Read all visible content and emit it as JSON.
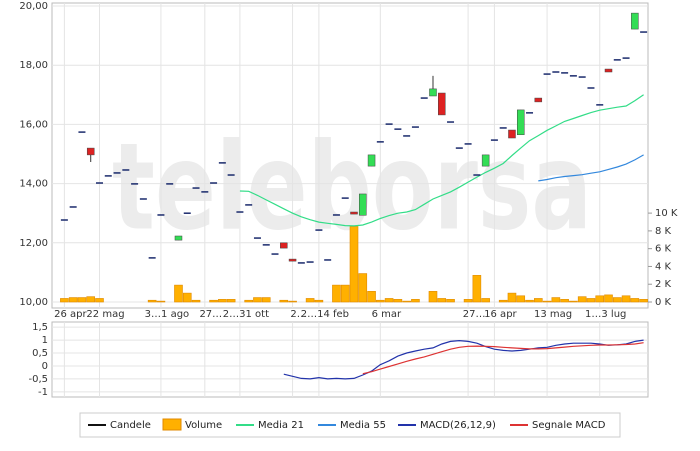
{
  "watermark": "teleborsa",
  "chart_data": [
    {
      "type": "candlestick",
      "name": "Candele",
      "color": "#1a2a6c",
      "up_color": "#33dd55",
      "down_color": "#dd2222",
      "categories": [
        "26 apr",
        null,
        null,
        null,
        "22 mag",
        null,
        null,
        null,
        null,
        null,
        null,
        "3…1 ago",
        null,
        null,
        null,
        null,
        "27…",
        null,
        null,
        null,
        "2…31 ott",
        null,
        null,
        null,
        null,
        null,
        "2…",
        null,
        null,
        "2…14 feb",
        null,
        null,
        null,
        null,
        null,
        null,
        "6 mar",
        null,
        null,
        null,
        null,
        null,
        null,
        null,
        null,
        null,
        "27…",
        null,
        null,
        "16 apr",
        null,
        null,
        null,
        null,
        null,
        "13 mag",
        null,
        null,
        null,
        null,
        null,
        "1…3 lug",
        null,
        null,
        null,
        null,
        null
      ],
      "open": [
        12.77,
        13.21,
        15.74,
        15.2,
        14.02,
        14.26,
        14.36,
        14.46,
        13.99,
        13.48,
        11.49,
        12.94,
        13.99,
        12.09,
        13.0,
        13.85,
        13.72,
        14.02,
        14.7,
        14.29,
        13.04,
        13.28,
        12.16,
        11.93,
        11.62,
        12.0,
        11.45,
        11.32,
        11.35,
        12.43,
        11.42,
        12.94,
        13.51,
        13.04,
        12.93,
        14.59,
        15.41,
        16.01,
        15.84,
        15.61,
        15.91,
        16.89,
        16.96,
        17.06,
        16.08,
        15.2,
        15.34,
        14.29,
        14.59,
        15.47,
        15.88,
        15.81,
        15.65,
        16.39,
        16.89,
        17.7,
        17.77,
        17.74,
        17.64,
        17.6,
        17.23,
        16.66,
        17.87,
        18.18,
        18.24,
        19.22,
        19.12
      ],
      "high": [
        12.77,
        13.21,
        15.74,
        15.2,
        14.02,
        14.26,
        14.36,
        14.46,
        13.99,
        13.48,
        11.49,
        12.94,
        13.99,
        12.23,
        13.0,
        13.85,
        13.72,
        14.02,
        14.7,
        14.29,
        13.04,
        13.28,
        12.16,
        11.93,
        11.62,
        12.0,
        11.45,
        11.32,
        11.35,
        12.43,
        11.42,
        12.94,
        13.51,
        13.04,
        13.65,
        14.97,
        15.41,
        16.01,
        15.84,
        15.61,
        15.91,
        16.89,
        17.64,
        17.06,
        16.08,
        15.2,
        15.34,
        14.29,
        14.97,
        15.47,
        15.88,
        15.81,
        16.49,
        16.39,
        16.89,
        17.7,
        17.77,
        17.74,
        17.64,
        17.6,
        17.23,
        16.66,
        17.87,
        18.18,
        18.24,
        19.76,
        19.12
      ],
      "low": [
        12.77,
        13.21,
        15.74,
        14.73,
        14.02,
        14.26,
        14.36,
        14.46,
        13.99,
        13.48,
        11.49,
        12.94,
        13.99,
        12.09,
        13.0,
        13.85,
        13.72,
        14.02,
        14.7,
        14.29,
        13.04,
        13.28,
        12.16,
        11.93,
        11.62,
        11.82,
        11.38,
        11.32,
        11.35,
        12.43,
        11.42,
        12.94,
        13.51,
        12.97,
        12.93,
        14.59,
        15.41,
        16.01,
        15.84,
        15.61,
        15.91,
        16.89,
        16.96,
        16.32,
        16.08,
        15.2,
        15.34,
        14.29,
        14.59,
        15.47,
        15.88,
        15.54,
        15.65,
        16.39,
        16.76,
        17.7,
        17.77,
        17.74,
        17.64,
        17.6,
        17.23,
        16.66,
        17.77,
        18.18,
        18.24,
        19.22,
        19.12
      ],
      "close": [
        12.77,
        13.21,
        15.74,
        14.97,
        14.02,
        14.26,
        14.36,
        14.46,
        13.99,
        13.48,
        11.49,
        12.94,
        13.99,
        12.23,
        13.0,
        13.85,
        13.72,
        14.02,
        14.7,
        14.29,
        13.04,
        13.28,
        12.16,
        11.93,
        11.62,
        11.82,
        11.38,
        11.32,
        11.35,
        12.43,
        11.42,
        12.94,
        13.51,
        12.97,
        13.65,
        14.97,
        15.41,
        16.01,
        15.84,
        15.61,
        15.91,
        16.89,
        17.2,
        16.32,
        16.08,
        15.2,
        15.34,
        14.29,
        14.97,
        15.47,
        15.88,
        15.54,
        16.49,
        16.39,
        16.76,
        17.7,
        17.77,
        17.74,
        17.64,
        17.6,
        17.23,
        16.66,
        17.77,
        18.18,
        18.24,
        19.76,
        19.12
      ],
      "series": [
        {
          "name": "Volume",
          "type": "bar",
          "axis": "y2",
          "color": "#ffb000",
          "values": [
            0.4,
            0.5,
            0.5,
            0.6,
            0.4,
            0,
            0,
            0,
            0,
            0,
            0.2,
            0.1,
            0,
            1.9,
            1.0,
            0.2,
            0,
            0.2,
            0.3,
            0.3,
            0,
            0.2,
            0.5,
            0.5,
            0,
            0.2,
            0.1,
            0,
            0.4,
            0.2,
            0,
            1.9,
            1.9,
            8.5,
            3.2,
            1.2,
            0.2,
            0.4,
            0.3,
            0.1,
            0.3,
            0,
            1.2,
            0.4,
            0.3,
            0,
            0.3,
            3.0,
            0.4,
            0,
            0.2,
            1.0,
            0.7,
            0.2,
            0.4,
            0.1,
            0.5,
            0.3,
            0.1,
            0.6,
            0.4,
            0.7,
            0.8,
            0.5,
            0.7,
            0.4,
            0.3
          ]
        },
        {
          "name": "Media 21",
          "type": "line",
          "color": "#33dd88",
          "values": [
            null,
            null,
            null,
            null,
            null,
            null,
            null,
            null,
            null,
            null,
            null,
            null,
            null,
            null,
            null,
            null,
            null,
            null,
            null,
            null,
            13.75,
            13.74,
            13.6,
            13.45,
            13.3,
            13.15,
            13.0,
            12.88,
            12.78,
            12.7,
            12.66,
            12.62,
            12.58,
            12.57,
            12.6,
            12.7,
            12.82,
            12.92,
            13.0,
            13.04,
            13.12,
            13.3,
            13.48,
            13.6,
            13.72,
            13.88,
            14.05,
            14.22,
            14.38,
            14.52,
            14.68,
            14.95,
            15.2,
            15.45,
            15.62,
            15.8,
            15.95,
            16.1,
            16.2,
            16.3,
            16.4,
            16.48,
            16.53,
            16.58,
            16.62,
            16.8,
            17.0
          ]
        },
        {
          "name": "Media 55",
          "type": "line",
          "color": "#3388dd",
          "values": [
            null,
            null,
            null,
            null,
            null,
            null,
            null,
            null,
            null,
            null,
            null,
            null,
            null,
            null,
            null,
            null,
            null,
            null,
            null,
            null,
            null,
            null,
            null,
            null,
            null,
            null,
            null,
            null,
            null,
            null,
            null,
            null,
            null,
            null,
            null,
            null,
            null,
            null,
            null,
            null,
            null,
            null,
            null,
            null,
            null,
            null,
            null,
            null,
            null,
            null,
            null,
            null,
            null,
            null,
            14.09,
            14.14,
            14.2,
            14.24,
            14.27,
            14.3,
            14.35,
            14.4,
            14.48,
            14.56,
            14.66,
            14.8,
            14.97
          ]
        }
      ],
      "ylim": [
        10,
        20
      ],
      "yticks": [
        {
          "value": 10,
          "label": "10,00"
        },
        {
          "value": 12,
          "label": "12,00"
        },
        {
          "value": 14,
          "label": "14,00"
        },
        {
          "value": 16,
          "label": "16,00"
        },
        {
          "value": 18,
          "label": "18,00"
        },
        {
          "value": 20,
          "label": "20,00"
        }
      ],
      "y2lim": [
        0,
        33.3
      ],
      "y2ticks": [
        {
          "value": 0,
          "label": "0 K"
        },
        {
          "value": 2,
          "label": "2 K"
        },
        {
          "value": 4,
          "label": "4 K"
        },
        {
          "value": 6,
          "label": "6 K"
        },
        {
          "value": 8,
          "label": "8 K"
        },
        {
          "value": 10,
          "label": "10 K"
        }
      ],
      "grid": true
    },
    {
      "type": "line",
      "series": [
        {
          "name": "MACD(26,12,9)",
          "color": "#2233aa",
          "values": [
            null,
            null,
            null,
            null,
            null,
            null,
            null,
            null,
            null,
            null,
            null,
            null,
            null,
            null,
            null,
            null,
            null,
            null,
            null,
            null,
            null,
            null,
            null,
            null,
            null,
            -0.32,
            -0.4,
            -0.48,
            -0.5,
            -0.45,
            -0.5,
            -0.48,
            -0.5,
            -0.48,
            -0.35,
            -0.2,
            0.05,
            0.2,
            0.38,
            0.5,
            0.58,
            0.65,
            0.7,
            0.85,
            0.95,
            0.98,
            0.95,
            0.88,
            0.75,
            0.65,
            0.6,
            0.58,
            0.6,
            0.65,
            0.7,
            0.72,
            0.8,
            0.85,
            0.88,
            0.88,
            0.88,
            0.85,
            0.8,
            0.82,
            0.85,
            0.95,
            1.0
          ]
        },
        {
          "name": "Segnale MACD",
          "color": "#dd3333",
          "values": [
            null,
            null,
            null,
            null,
            null,
            null,
            null,
            null,
            null,
            null,
            null,
            null,
            null,
            null,
            null,
            null,
            null,
            null,
            null,
            null,
            null,
            null,
            null,
            null,
            null,
            null,
            null,
            null,
            null,
            null,
            null,
            null,
            null,
            null,
            -0.3,
            -0.22,
            -0.12,
            -0.02,
            0.08,
            0.18,
            0.27,
            0.35,
            0.45,
            0.55,
            0.65,
            0.72,
            0.76,
            0.77,
            0.76,
            0.75,
            0.72,
            0.7,
            0.68,
            0.66,
            0.66,
            0.67,
            0.7,
            0.73,
            0.76,
            0.78,
            0.8,
            0.81,
            0.81,
            0.82,
            0.83,
            0.85,
            0.9
          ]
        }
      ],
      "ylim": [
        -1.2,
        1.7
      ],
      "yticks": [
        {
          "value": 1.5,
          "label": "1,5"
        },
        1,
        {
          "value": 0.5,
          "label": "0,5"
        },
        0,
        {
          "value": -0.5,
          "label": "-0,5"
        },
        -1
      ],
      "grid": true
    }
  ]
}
